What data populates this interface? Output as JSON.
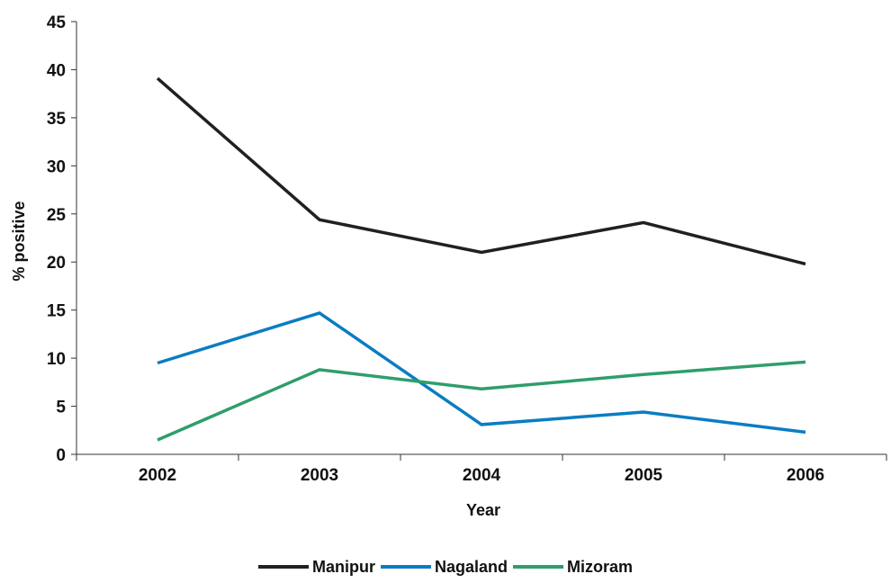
{
  "chart_data": {
    "type": "line",
    "categories": [
      "2002",
      "2003",
      "2004",
      "2005",
      "2006"
    ],
    "series": [
      {
        "name": "Manipur",
        "values": [
          39.1,
          24.4,
          21.0,
          24.1,
          19.8
        ],
        "color": "#231f20"
      },
      {
        "name": "Nagaland",
        "values": [
          9.5,
          14.7,
          3.1,
          4.4,
          2.3
        ],
        "color": "#0a7dc2"
      },
      {
        "name": "Mizoram",
        "values": [
          1.5,
          8.8,
          6.8,
          8.3,
          9.6
        ],
        "color": "#2e9e6a"
      }
    ],
    "xlabel": "Year",
    "ylabel": "% positive",
    "ylim": [
      0,
      45
    ],
    "yticks": [
      "0",
      "5",
      "10",
      "15",
      "20",
      "25",
      "30",
      "35",
      "40",
      "45"
    ],
    "grid": false,
    "legend_position": "bottom"
  }
}
